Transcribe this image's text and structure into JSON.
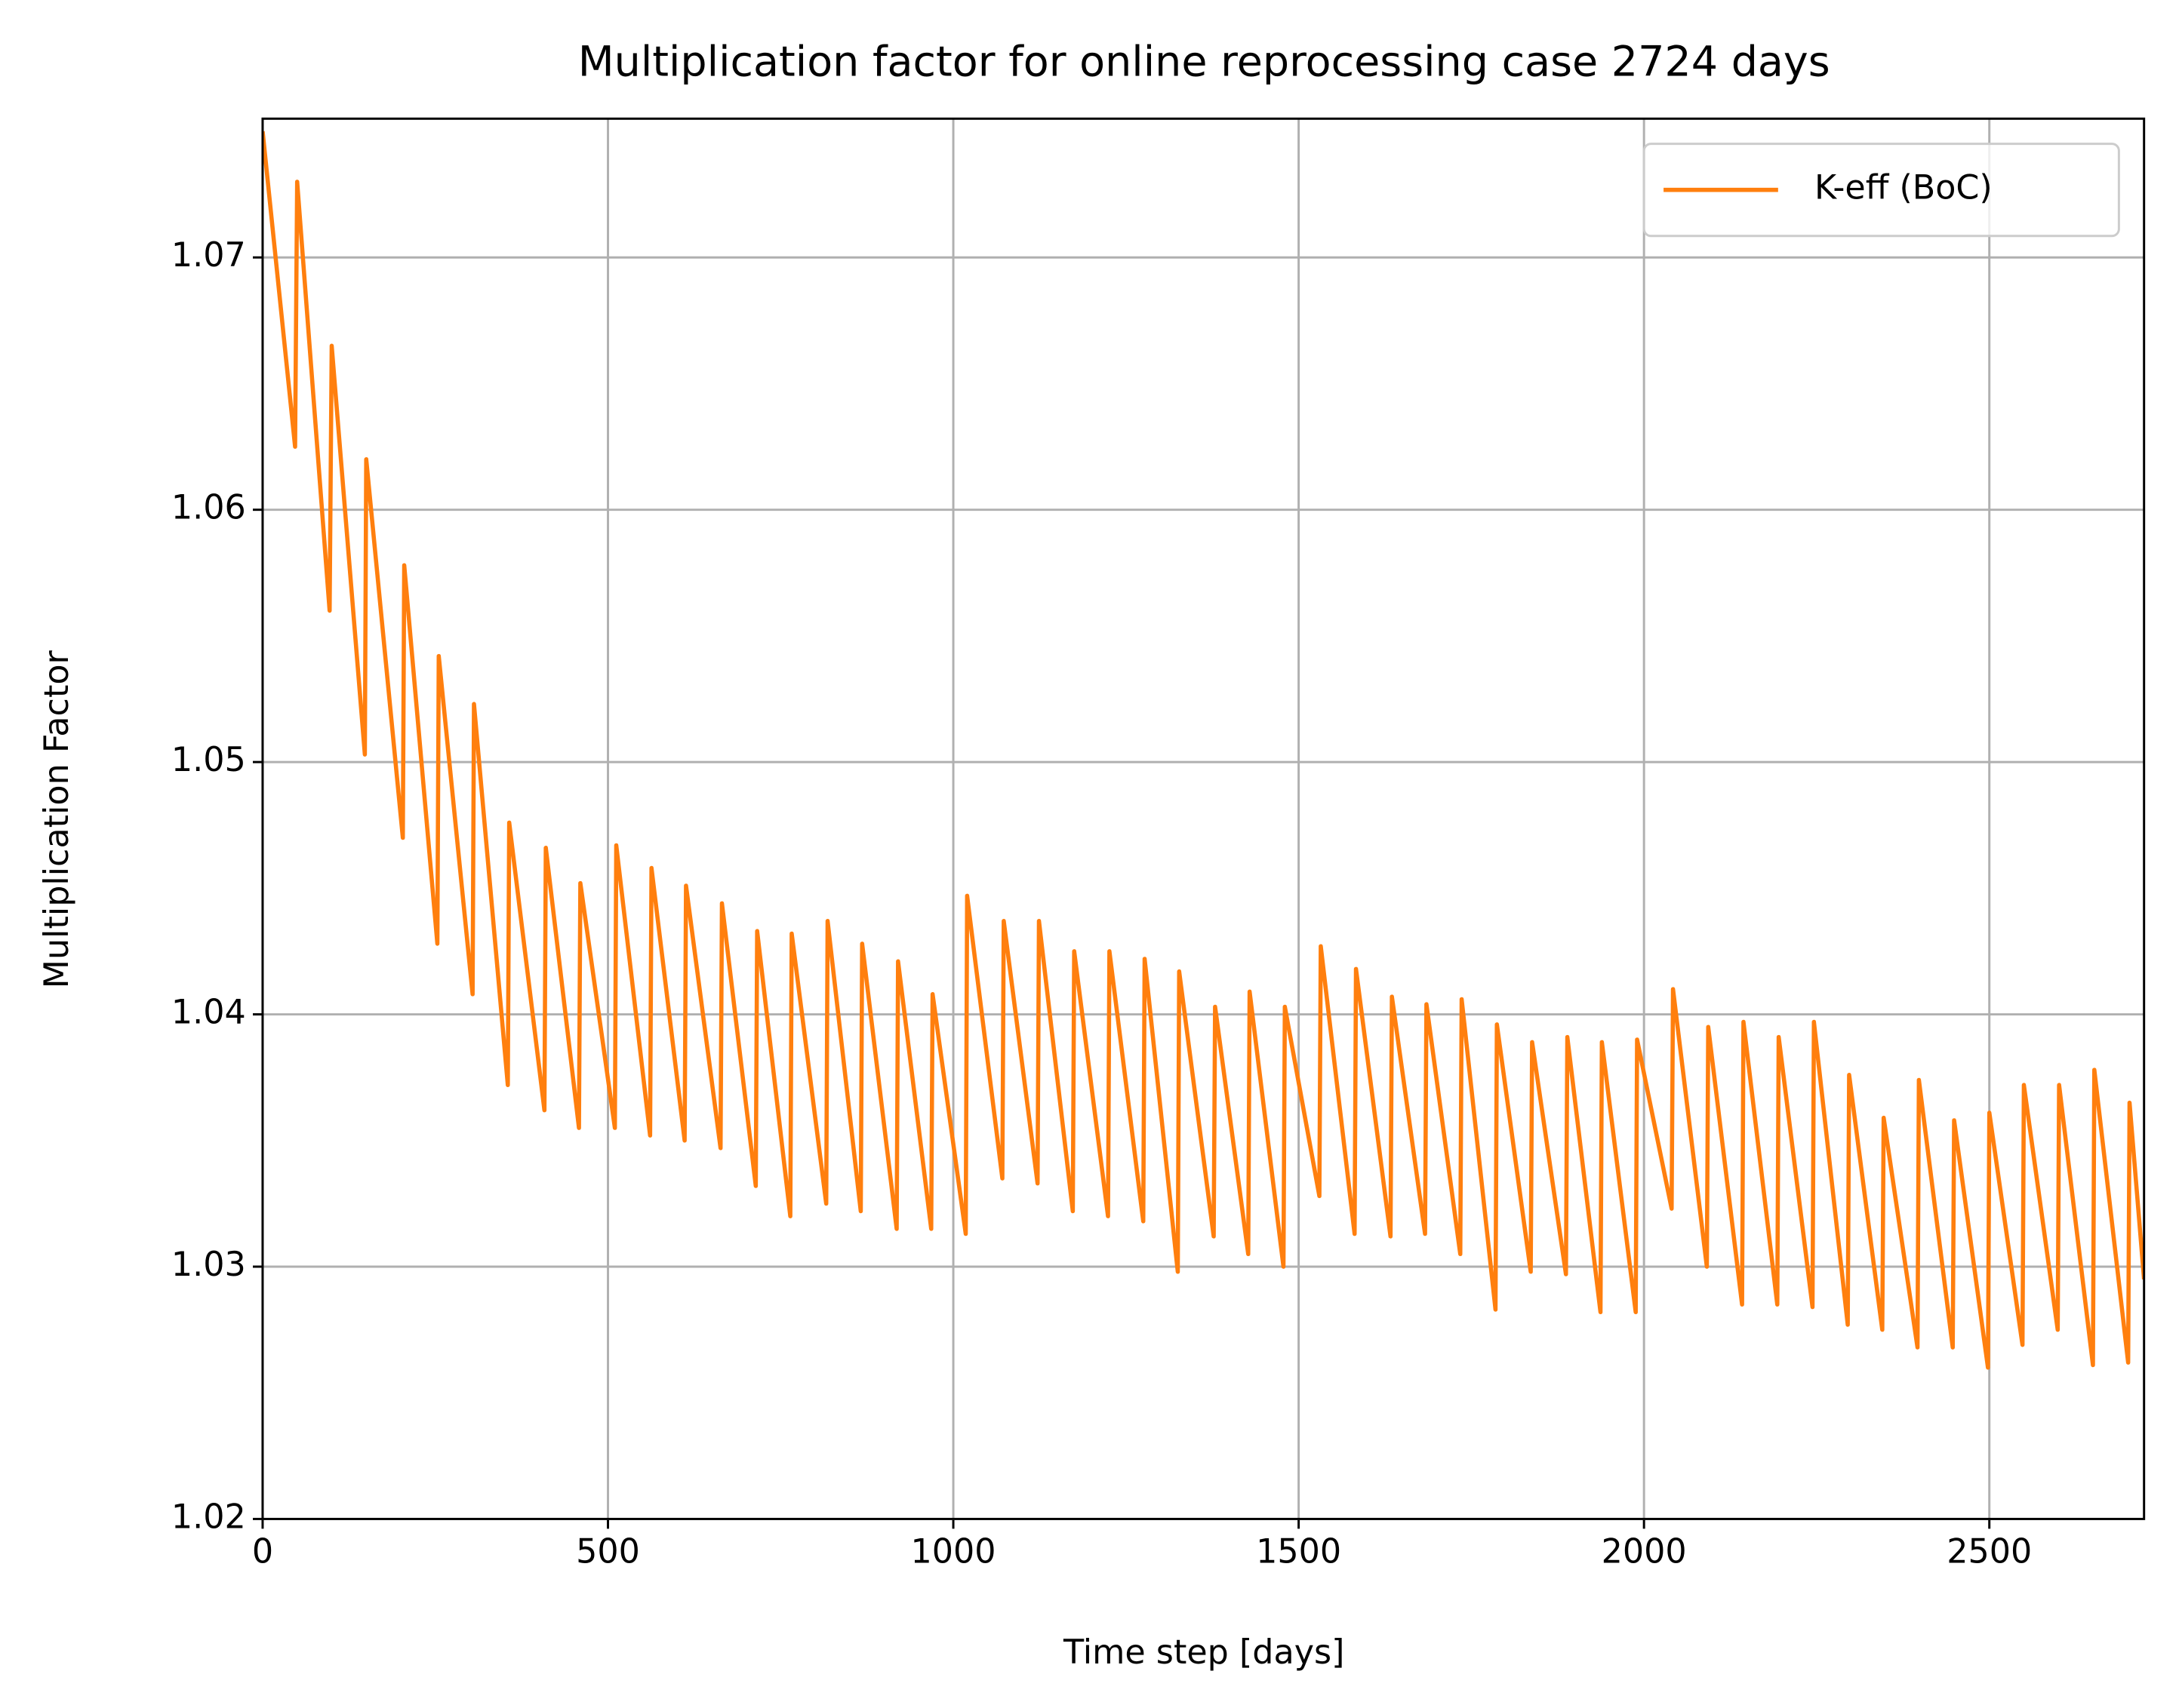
{
  "chart_data": {
    "type": "line",
    "title": "Multiplication factor for online reprocessing case 2724 days",
    "xlabel": "Time step [days]",
    "ylabel": "Multiplication Factor",
    "x": [
      0,
      47,
      50,
      97,
      100,
      148,
      150,
      203,
      205,
      253,
      255,
      304,
      306,
      355,
      357,
      408,
      410,
      458,
      460,
      510,
      512,
      561,
      563,
      611,
      613,
      663,
      665,
      714,
      716,
      764,
      766,
      816,
      818,
      866,
      868,
      918,
      920,
      968,
      970,
      1018,
      1020,
      1071,
      1073,
      1122,
      1124,
      1173,
      1175,
      1224,
      1226,
      1275,
      1277,
      1325,
      1327,
      1377,
      1379,
      1427,
      1429,
      1478,
      1480,
      1530,
      1532,
      1581,
      1583,
      1633,
      1635,
      1683,
      1685,
      1734,
      1736,
      1785,
      1787,
      1836,
      1838,
      1887,
      1889,
      1937,
      1939,
      1988,
      1990,
      2040,
      2042,
      2091,
      2093,
      2142,
      2144,
      2193,
      2195,
      2244,
      2246,
      2295,
      2297,
      2345,
      2347,
      2396,
      2398,
      2447,
      2449,
      2498,
      2500,
      2548,
      2550,
      2599,
      2601,
      2650,
      2652,
      2701,
      2703,
      2724
    ],
    "series": [
      {
        "name": "K-eff (BoC)",
        "color": "#ff7f0e",
        "values": [
          1.075,
          1.0625,
          1.073,
          1.056,
          1.0665,
          1.0503,
          1.062,
          1.047,
          1.0578,
          1.0428,
          1.0542,
          1.0408,
          1.0523,
          1.0372,
          1.0476,
          1.0362,
          1.0466,
          1.0355,
          1.0452,
          1.0355,
          1.0467,
          1.0352,
          1.0458,
          1.035,
          1.0451,
          1.0347,
          1.0444,
          1.0332,
          1.0433,
          1.032,
          1.0432,
          1.0325,
          1.0437,
          1.0322,
          1.0428,
          1.0315,
          1.0421,
          1.0315,
          1.0408,
          1.0313,
          1.0447,
          1.0335,
          1.0437,
          1.0333,
          1.0437,
          1.0322,
          1.0425,
          1.032,
          1.0425,
          1.0318,
          1.0422,
          1.0298,
          1.0417,
          1.0312,
          1.0403,
          1.0305,
          1.0409,
          1.03,
          1.0403,
          1.0328,
          1.0427,
          1.0313,
          1.0418,
          1.0312,
          1.0407,
          1.0313,
          1.0404,
          1.0305,
          1.0406,
          1.0283,
          1.0396,
          1.0298,
          1.0389,
          1.0297,
          1.0391,
          1.0282,
          1.0389,
          1.0282,
          1.039,
          1.0323,
          1.041,
          1.03,
          1.0395,
          1.0285,
          1.0397,
          1.0285,
          1.0391,
          1.0284,
          1.0397,
          1.0277,
          1.0376,
          1.0275,
          1.0359,
          1.0268,
          1.0374,
          1.0268,
          1.0358,
          1.026,
          1.0361,
          1.0269,
          1.0372,
          1.0275,
          1.0372,
          1.0261,
          1.0378,
          1.0262,
          1.0365,
          1.0295
        ]
      }
    ],
    "xlim": [
      0,
      2724
    ],
    "ylim": [
      1.02,
      1.0755
    ],
    "xticks": [
      0,
      500,
      1000,
      1500,
      2000,
      2500
    ],
    "yticks": [
      1.02,
      1.03,
      1.04,
      1.05,
      1.06,
      1.07
    ],
    "grid": true,
    "legend": "upper right"
  }
}
